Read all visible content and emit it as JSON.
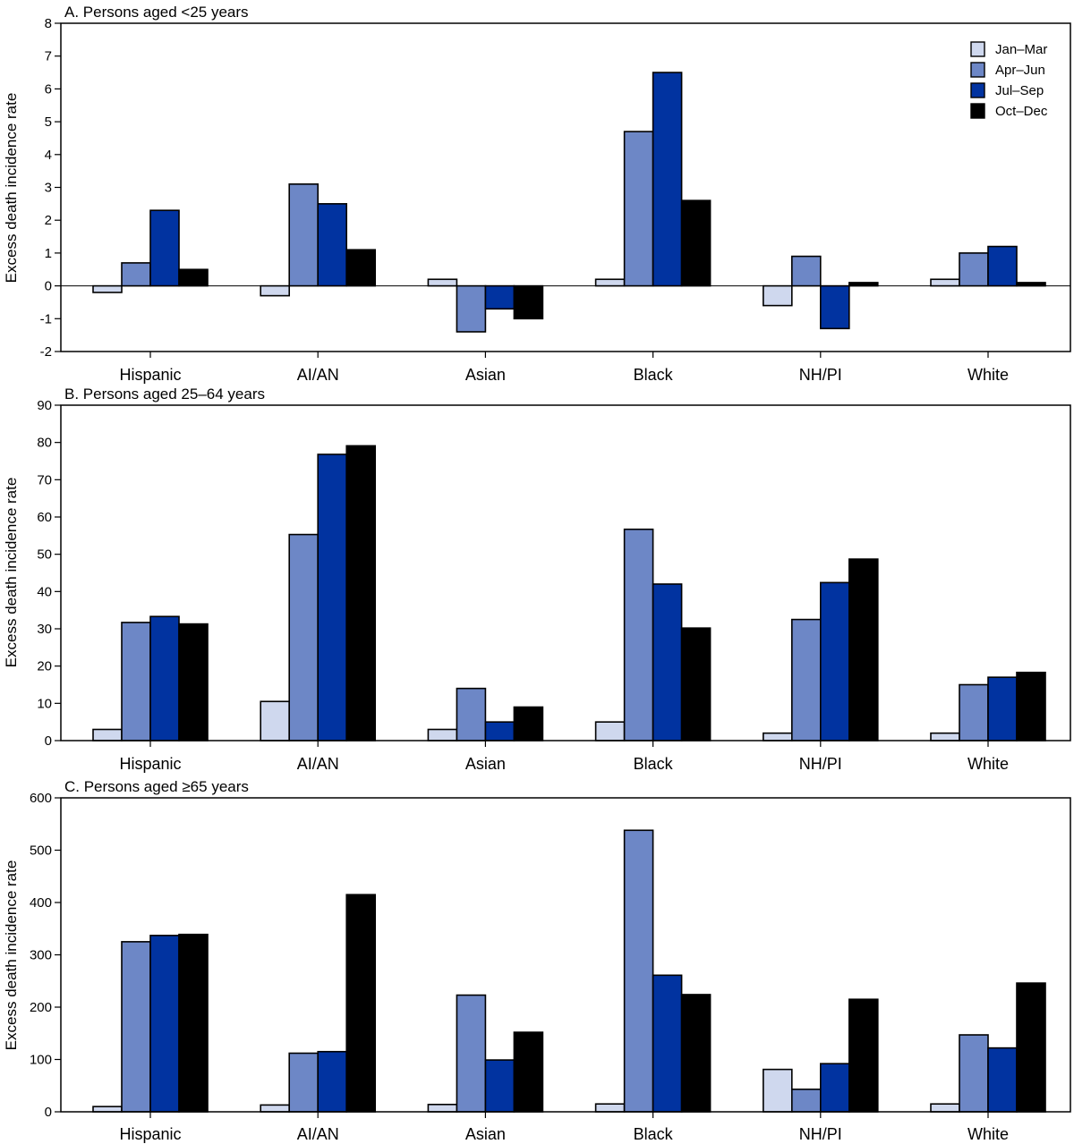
{
  "chart_data": [
    {
      "type": "bar",
      "title": "A. Persons aged <25 years",
      "xlabel": "",
      "ylabel": "Excess death incidence rate",
      "ylim": [
        -2,
        8
      ],
      "yticks": [
        -2,
        -1,
        0,
        1,
        2,
        3,
        4,
        5,
        6,
        7,
        8
      ],
      "ytick_labels": [
        "-2",
        "-1",
        "0",
        "1",
        "2",
        "3",
        "4",
        "5",
        "6",
        "7",
        "8"
      ],
      "categories": [
        "Hispanic",
        "AI/AN",
        "Asian",
        "Black",
        "NH/PI",
        "White"
      ],
      "series": [
        {
          "name": "Jan–Mar",
          "values": [
            -0.2,
            -0.3,
            0.2,
            0.2,
            -0.6,
            0.2
          ]
        },
        {
          "name": "Apr–Jun",
          "values": [
            0.7,
            3.1,
            -1.4,
            4.7,
            0.9,
            1.0
          ]
        },
        {
          "name": "Jul–Sep",
          "values": [
            2.3,
            2.5,
            -0.7,
            6.5,
            -1.3,
            1.2
          ]
        },
        {
          "name": "Oct–Dec",
          "values": [
            0.5,
            1.1,
            -1.0,
            2.6,
            0.1,
            0.1
          ]
        }
      ],
      "legend": "top-right"
    },
    {
      "type": "bar",
      "title": "B. Persons aged 25–64 years",
      "xlabel": "",
      "ylabel": "Excess death incidence rate",
      "ylim": [
        0,
        90
      ],
      "yticks": [
        0,
        10,
        20,
        30,
        40,
        50,
        60,
        70,
        80,
        90
      ],
      "ytick_labels": [
        "0",
        "10",
        "20",
        "30",
        "40",
        "50",
        "60",
        "70",
        "80",
        "90"
      ],
      "categories": [
        "Hispanic",
        "AI/AN",
        "Asian",
        "Black",
        "NH/PI",
        "White"
      ],
      "series": [
        {
          "name": "Jan–Mar",
          "values": [
            3,
            10.5,
            3,
            5,
            2,
            2
          ]
        },
        {
          "name": "Apr–Jun",
          "values": [
            31.7,
            55.3,
            14,
            56.7,
            32.5,
            15
          ]
        },
        {
          "name": "Jul–Sep",
          "values": [
            33.3,
            76.8,
            5,
            42,
            42.4,
            17
          ]
        },
        {
          "name": "Oct–Dec",
          "values": [
            31.3,
            79.1,
            9,
            30.2,
            48.7,
            18.3
          ]
        }
      ]
    },
    {
      "type": "bar",
      "title": "C. Persons aged ≥65 years",
      "xlabel": "",
      "ylabel": "Excess death incidence rate",
      "ylim": [
        0,
        600
      ],
      "yticks": [
        0,
        100,
        200,
        300,
        400,
        500,
        600
      ],
      "ytick_labels": [
        "0",
        "100",
        "200",
        "300",
        "400",
        "500",
        "600"
      ],
      "categories": [
        "Hispanic",
        "AI/AN",
        "Asian",
        "Black",
        "NH/PI",
        "White"
      ],
      "series": [
        {
          "name": "Jan–Mar",
          "values": [
            10,
            13,
            14,
            15,
            81,
            15
          ]
        },
        {
          "name": "Apr–Jun",
          "values": [
            325,
            112,
            223,
            538,
            43,
            147
          ]
        },
        {
          "name": "Jul–Sep",
          "values": [
            337,
            115,
            99,
            261,
            92,
            122
          ]
        },
        {
          "name": "Oct–Dec",
          "values": [
            339,
            415,
            152,
            224,
            215,
            246
          ]
        }
      ]
    }
  ],
  "series_colors": [
    "#cfd8ee",
    "#6d87c6",
    "#0133a0",
    "#000000"
  ],
  "legend_icon": "legend-swatch"
}
